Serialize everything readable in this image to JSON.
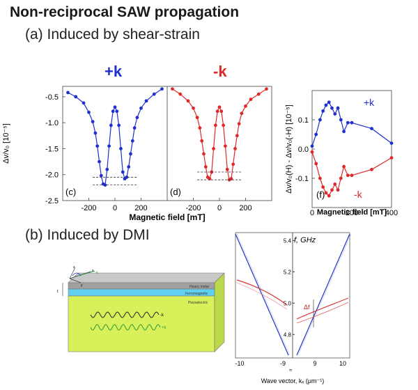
{
  "slide": {
    "title": "Non-reciprocal SAW propagation",
    "section_a": "(a) Induced by shear-strain",
    "section_b": "(b) Induced by DMI",
    "label_plus_k": "+k",
    "label_minus_k": "-k"
  },
  "colors": {
    "blue": "#1f2fd0",
    "red": "#e02828",
    "grey_top": "#a0a0a0",
    "cyan_layer": "#5fd0f0",
    "yellow_layer": "#d8f05a"
  },
  "panel_cd": {
    "ylabel": "Δv/v₀ [10⁻⁵]",
    "xlabel": "Magnetic field [mT]",
    "yticks": [
      "-0.5",
      "-1.0",
      "-1.5",
      "-2.0",
      "-2.5"
    ],
    "xticks_c": [
      "-200",
      "0",
      "200"
    ],
    "xticks_d": [
      "-200",
      "0",
      "200"
    ],
    "label_c": "(c)",
    "label_d": "(d)"
  },
  "panel_f": {
    "ylabel": "Δv/v₀(H) - Δv/v₀(-H) [10⁻⁵]",
    "xlabel": "Magnetic field [mT]",
    "yticks": [
      "0.1",
      "0.0",
      "-0.1"
    ],
    "xticks": [
      "0",
      "200",
      "400"
    ],
    "label": "(f)",
    "legend_plus": "+k",
    "legend_minus": "-k"
  },
  "diagram": {
    "layer_heavy": "Heavy metal",
    "layer_ferro": "Ferromagnetic",
    "layer_piezo": "Piezoelectric",
    "wave_plus": "+k",
    "wave_minus": "-k",
    "axis_x": "x",
    "axis_y": "y",
    "axis_z": "z",
    "vec_k": "k",
    "thickness": "t"
  },
  "panel_dmi": {
    "ylabel": "f, GHz",
    "xlabel": "Wave vector, kₓ (μm⁻¹)",
    "yticks": [
      "5.4",
      "5.2",
      "5.0",
      "4.8"
    ],
    "xticks": [
      "-10",
      "-9",
      "9",
      "10"
    ],
    "gap_label": "Δf",
    "axis_break": "≈"
  },
  "chart_data": [
    {
      "id": "c",
      "type": "scatter",
      "series": [
        {
          "name": "+k",
          "x": [
            -360,
            -300,
            -240,
            -200,
            -170,
            -150,
            -135,
            -120,
            -105,
            -90,
            -75,
            -60,
            -45,
            -30,
            -15,
            0,
            15,
            30,
            45,
            60,
            75,
            90,
            105,
            120,
            135,
            150,
            170,
            200,
            240,
            300,
            360
          ],
          "y": [
            -0.42,
            -0.5,
            -0.62,
            -0.8,
            -0.98,
            -1.2,
            -1.45,
            -1.75,
            -2.02,
            -2.18,
            -2.2,
            -1.9,
            -1.45,
            -1.05,
            -0.78,
            -0.7,
            -0.78,
            -1.05,
            -1.5,
            -1.95,
            -2.08,
            -2.05,
            -1.85,
            -1.6,
            -1.35,
            -1.1,
            -0.9,
            -0.72,
            -0.58,
            -0.45,
            -0.35
          ]
        }
      ],
      "xlim": [
        -400,
        400
      ],
      "ylim": [
        -2.5,
        -0.3
      ],
      "dashed_lines": [
        -2.05,
        -2.2
      ]
    },
    {
      "id": "d",
      "type": "scatter",
      "series": [
        {
          "name": "-k",
          "x": [
            -360,
            -300,
            -240,
            -200,
            -170,
            -150,
            -135,
            -120,
            -105,
            -90,
            -75,
            -60,
            -45,
            -30,
            -15,
            0,
            15,
            30,
            45,
            60,
            75,
            90,
            105,
            120,
            135,
            150,
            170,
            200,
            240,
            300,
            360
          ],
          "y": [
            -0.35,
            -0.45,
            -0.58,
            -0.72,
            -0.9,
            -1.1,
            -1.35,
            -1.6,
            -1.85,
            -2.05,
            -2.08,
            -1.95,
            -1.5,
            -1.05,
            -0.78,
            -0.7,
            -0.78,
            -1.05,
            -1.45,
            -1.9,
            -2.1,
            -2.08,
            -1.8,
            -1.5,
            -1.25,
            -1.02,
            -0.82,
            -0.68,
            -0.55,
            -0.45,
            -0.35
          ]
        }
      ],
      "xlim": [
        -400,
        400
      ],
      "ylim": [
        -2.5,
        -0.3
      ],
      "dashed_lines": [
        -1.95,
        -2.1
      ]
    },
    {
      "id": "f",
      "type": "scatter",
      "series": [
        {
          "name": "+k",
          "x": [
            0,
            20,
            40,
            55,
            70,
            85,
            100,
            115,
            130,
            145,
            160,
            180,
            200,
            300,
            400
          ],
          "y": [
            0.01,
            0.05,
            0.1,
            0.13,
            0.15,
            0.16,
            0.14,
            0.12,
            0.14,
            0.1,
            0.06,
            0.09,
            0.09,
            0.07,
            0.02
          ]
        },
        {
          "name": "-k",
          "x": [
            0,
            20,
            40,
            55,
            70,
            85,
            100,
            115,
            130,
            145,
            160,
            180,
            200,
            300,
            400
          ],
          "y": [
            -0.01,
            -0.05,
            -0.1,
            -0.13,
            -0.15,
            -0.16,
            -0.14,
            -0.12,
            -0.14,
            -0.1,
            -0.06,
            -0.09,
            -0.09,
            -0.07,
            -0.03
          ]
        }
      ],
      "xlim": [
        0,
        400
      ],
      "ylim": [
        -0.2,
        0.2
      ]
    },
    {
      "id": "dmi",
      "type": "line",
      "series": [
        {
          "name": "+k",
          "x": [
            -10.3,
            -9.8,
            -9.5,
            -9.2,
            -9.05
          ],
          "y": [
            5.42,
            5.1,
            4.92,
            4.75,
            4.66
          ]
        },
        {
          "name": "-k",
          "x": [
            9.05,
            9.2,
            9.5,
            9.8,
            10.3
          ],
          "y": [
            4.66,
            4.75,
            4.92,
            5.1,
            5.42
          ]
        }
      ],
      "ylim": [
        4.65,
        5.45
      ]
    }
  ]
}
